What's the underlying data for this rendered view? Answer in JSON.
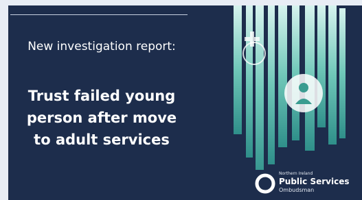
{
  "intro": "New investigation report:",
  "headline": [
    "Trust failed young",
    "person after move",
    "to adult services"
  ],
  "logo": {
    "region": "Northern Ireland",
    "name": "Public Services",
    "sub": "Ombudsman"
  }
}
